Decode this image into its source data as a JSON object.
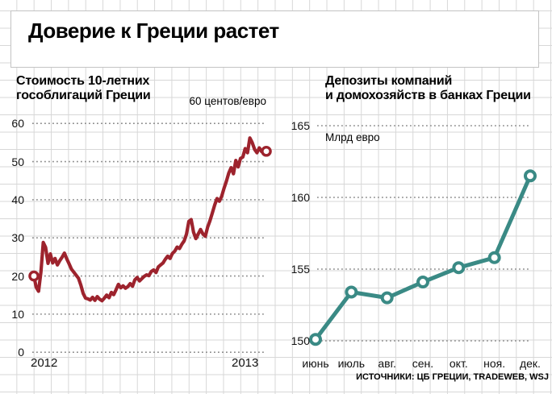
{
  "header": {
    "title": "Доверие к Греции растет"
  },
  "bonds_chart": {
    "title_line1": "Стоимость 10-летних",
    "title_line2": "гособлигаций Греции",
    "annotation": "60 центов/евро"
  },
  "deposits_chart": {
    "title_line1": "Депозиты компаний",
    "title_line2": "и домохозяйств в банках Греции",
    "unit_label": "Млрд евро"
  },
  "source_note": "ИСТОЧНИКИ: ЦБ ГРЕЦИИ, TRADEWEB, WSJ",
  "colors": {
    "bonds_line": "#9d232d",
    "deposits_line": "#3a8a85",
    "dotted_gridline": "#8c8c8c",
    "paper_grid": "#d7d7d7"
  },
  "chart_data": [
    {
      "id": "bonds",
      "type": "line",
      "title": "Стоимость 10-летних гособлигаций Греции",
      "unit": "60 центов/евро",
      "color": "#9d232d",
      "ylim": [
        0,
        60
      ],
      "yticks": [
        60,
        50,
        40,
        30,
        20,
        10,
        0
      ],
      "xticks": [
        "2012",
        "2013"
      ],
      "grid": "dotted horizontal",
      "endpoint_markers": true,
      "values": [
        20.0,
        17.0,
        16.0,
        21.0,
        28.8,
        27.5,
        23.3,
        25.8,
        23.4,
        24.6,
        22.9,
        24.0,
        24.9,
        26.0,
        24.5,
        23.2,
        21.8,
        21.0,
        20.2,
        19.4,
        17.6,
        15.4,
        14.2,
        14.0,
        13.7,
        14.4,
        13.6,
        14.6,
        13.9,
        13.5,
        14.2,
        15.0,
        14.3,
        15.7,
        15.1,
        16.4,
        17.8,
        16.9,
        17.4,
        16.8,
        17.2,
        18.0,
        17.3,
        19.0,
        19.6,
        18.7,
        19.3,
        19.9,
        20.3,
        20.1,
        21.2,
        21.6,
        20.9,
        22.4,
        22.9,
        23.4,
        24.4,
        25.2,
        24.6,
        25.9,
        26.5,
        27.6,
        27.2,
        28.3,
        29.2,
        31.0,
        34.3,
        34.8,
        31.5,
        29.8,
        31.0,
        32.2,
        31.0,
        30.4,
        32.8,
        34.5,
        36.5,
        38.6,
        40.3,
        39.6,
        40.9,
        43.0,
        44.8,
        47.0,
        48.4,
        46.8,
        50.3,
        48.6,
        50.8,
        51.2,
        53.4,
        52.3,
        56.2,
        55.0,
        53.2,
        52.3,
        53.6,
        52.6,
        52.4,
        52.7
      ]
    },
    {
      "id": "deposits",
      "type": "line",
      "title": "Депозиты компаний и домохозяйств в банках Греции",
      "unit": "Млрд евро",
      "color": "#3a8a85",
      "ylim": [
        150,
        165
      ],
      "yticks": [
        165,
        160,
        155,
        150
      ],
      "categories": [
        "июнь",
        "июль",
        "авг.",
        "сен.",
        "окт.",
        "ноя.",
        "дек."
      ],
      "values": [
        150.1,
        153.4,
        153.0,
        154.1,
        155.1,
        155.8,
        161.5
      ],
      "grid": "dotted horizontal",
      "point_markers": true
    }
  ]
}
